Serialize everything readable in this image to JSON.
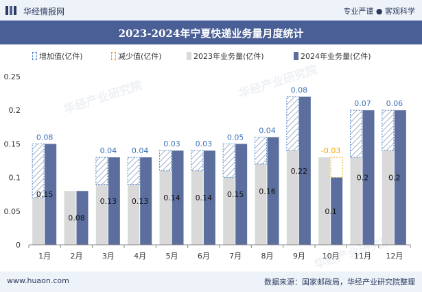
{
  "header": {
    "brand": "华经情报网",
    "slogan": "专业严谨 ● 客观科学"
  },
  "footer": {
    "url": "www.huaon.com",
    "source": "数据来源：国家邮政局，华经产业研究院整理"
  },
  "watermark": "华经产业研究院",
  "colors": {
    "bar2023": "#d9d9d9",
    "bar2024": "#5b6e9e",
    "increase": "#4f86c6",
    "decrease": "#f0a400",
    "title_bg": "#4a5f95"
  },
  "chart_data": {
    "type": "bar",
    "title": "2023-2024年宁夏快递业务量月度统计",
    "legend": [
      "增加值(亿件)",
      "减少值(亿件)",
      "2023年业务量(亿件)",
      "2024年业务量(亿件)"
    ],
    "legend_position": "top",
    "categories": [
      "1月",
      "2月",
      "3月",
      "4月",
      "5月",
      "6月",
      "7月",
      "8月",
      "9月",
      "10月",
      "11月",
      "12月"
    ],
    "series": [
      {
        "name": "2023年业务量(亿件)",
        "values": [
          0.07,
          0.08,
          0.09,
          0.09,
          0.11,
          0.11,
          0.1,
          0.12,
          0.14,
          0.13,
          0.13,
          0.14
        ]
      },
      {
        "name": "2024年业务量(亿件)",
        "values": [
          0.15,
          0.08,
          0.13,
          0.13,
          0.14,
          0.14,
          0.15,
          0.16,
          0.22,
          0.1,
          0.2,
          0.2
        ]
      }
    ],
    "changes": [
      "0.08",
      "",
      "0.04",
      "0.04",
      "0.03",
      "0.03",
      "0.05",
      "0.04",
      "0.08",
      "-0.03",
      "0.07",
      "0.06"
    ],
    "value_labels_2024": [
      "0.15",
      "0.08",
      "0.13",
      "0.13",
      "0.14",
      "0.14",
      "0.15",
      "0.16",
      "0.22",
      "0.1",
      "0.2",
      "0.2"
    ],
    "ylim": [
      0,
      0.25
    ],
    "yticks": [
      "0",
      "0.05",
      "0.1",
      "0.15",
      "0.2",
      "0.25"
    ],
    "grid": false
  }
}
